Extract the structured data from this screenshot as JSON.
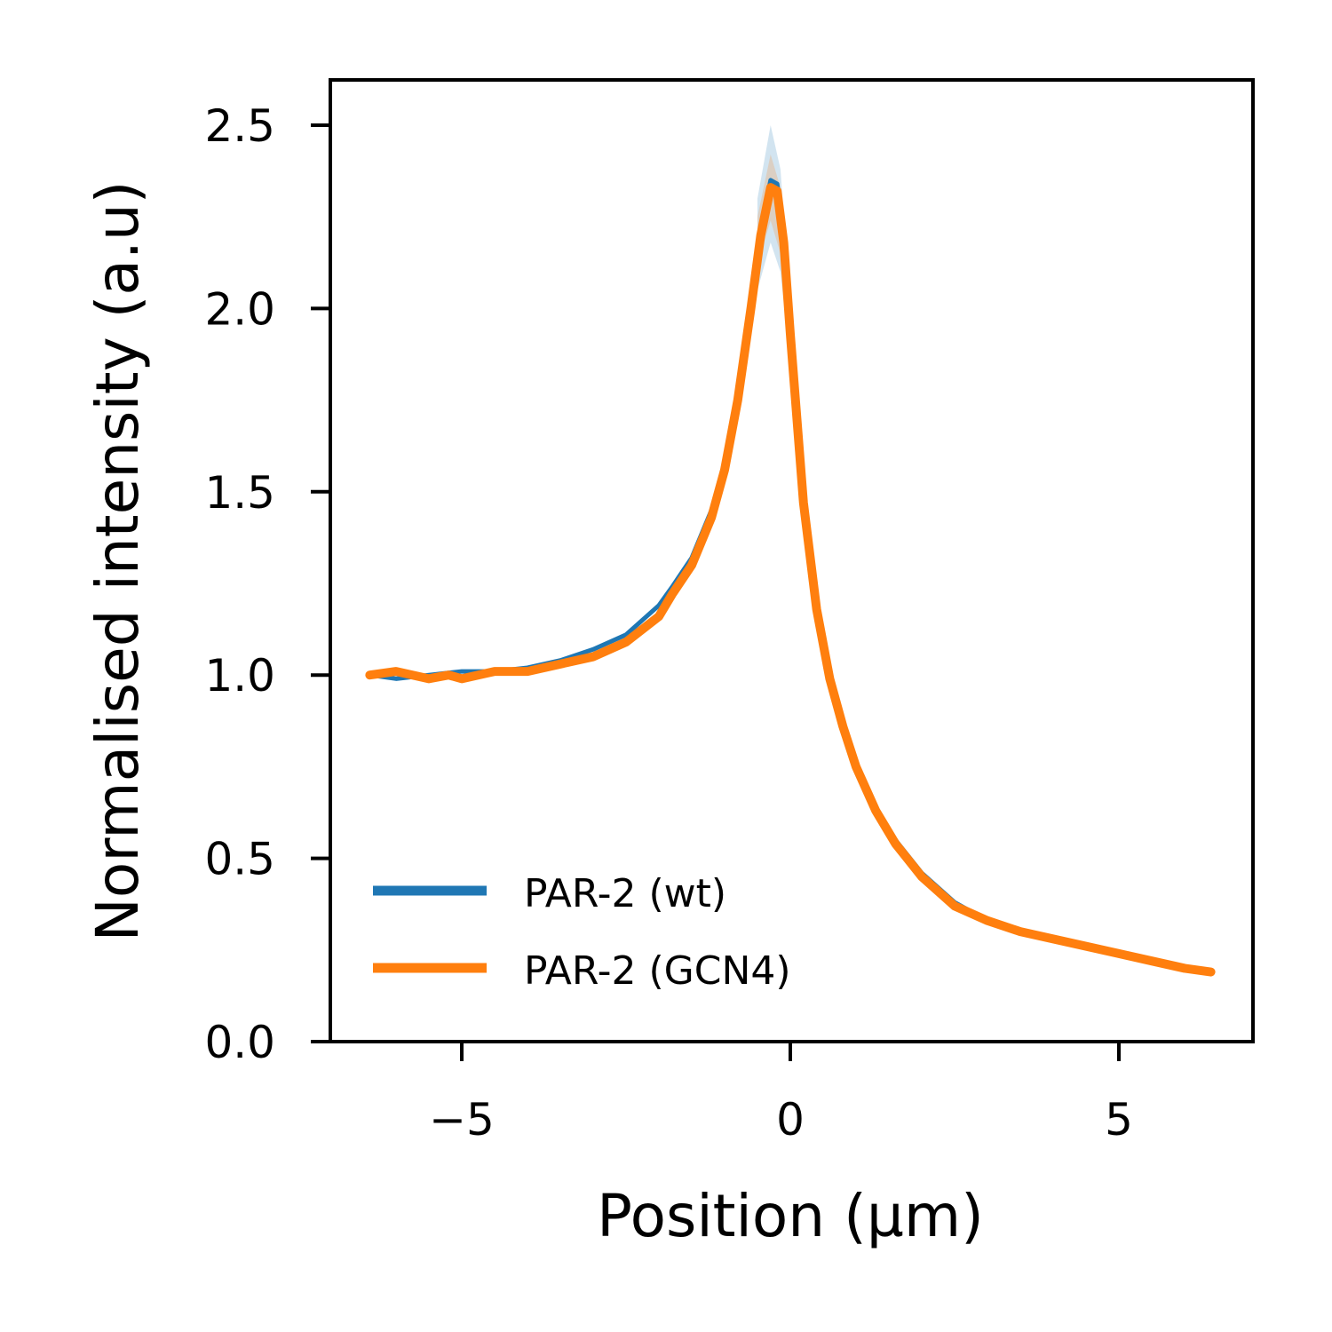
{
  "chart_data": {
    "type": "line",
    "title": "",
    "xlabel": "Position (µm)",
    "ylabel": "Normalised intensity (a.u)",
    "xlim": [
      -7,
      7
    ],
    "ylim": [
      0,
      2.62
    ],
    "xticks": [
      -5,
      0,
      5
    ],
    "xtick_labels": [
      "−5",
      "0",
      "5"
    ],
    "yticks": [
      0,
      0.5,
      1,
      1.5,
      2,
      2.5
    ],
    "ytick_labels": [
      "0.0",
      "0.5",
      "1.0",
      "1.5",
      "2.0",
      "2.5"
    ],
    "grid": false,
    "legend_position": "lower-left",
    "series": [
      {
        "name": "PAR-2 (wt)",
        "color": "#1f77b4",
        "band_upper": [
          [
            -0.5,
            2.3
          ],
          [
            -0.3,
            2.5
          ],
          [
            -0.15,
            2.38
          ],
          [
            0.0,
            2.0
          ]
        ],
        "band_lower": [
          [
            -0.5,
            2.05
          ],
          [
            -0.3,
            2.18
          ],
          [
            -0.15,
            2.1
          ],
          [
            0.0,
            1.85
          ]
        ],
        "x": [
          -6.4,
          -6.0,
          -5.5,
          -5.0,
          -4.5,
          -4.0,
          -3.5,
          -3.0,
          -2.5,
          -2.0,
          -1.8,
          -1.5,
          -1.2,
          -1.0,
          -0.8,
          -0.6,
          -0.45,
          -0.3,
          -0.2,
          -0.1,
          0.0,
          0.2,
          0.4,
          0.6,
          0.8,
          1.0,
          1.3,
          1.6,
          2.0,
          2.5,
          3.0,
          3.5,
          4.0,
          4.5,
          5.0,
          5.5,
          6.0,
          6.4
        ],
        "y": [
          1.0,
          0.99,
          1.0,
          1.01,
          1.01,
          1.02,
          1.04,
          1.07,
          1.11,
          1.19,
          1.24,
          1.32,
          1.45,
          1.58,
          1.77,
          2.03,
          2.22,
          2.35,
          2.34,
          2.2,
          1.95,
          1.49,
          1.2,
          1.01,
          0.87,
          0.76,
          0.64,
          0.55,
          0.46,
          0.38,
          0.33,
          0.3,
          0.28,
          0.26,
          0.24,
          0.22,
          0.2,
          0.19
        ]
      },
      {
        "name": "PAR-2 (GCN4)",
        "color": "#ff7f0e",
        "band_upper": [
          [
            -0.5,
            2.25
          ],
          [
            -0.3,
            2.42
          ],
          [
            -0.15,
            2.33
          ],
          [
            0.0,
            1.98
          ]
        ],
        "band_lower": [
          [
            -0.5,
            2.12
          ],
          [
            -0.3,
            2.24
          ],
          [
            -0.15,
            2.15
          ],
          [
            0.0,
            1.88
          ]
        ],
        "x": [
          -6.4,
          -6.0,
          -5.5,
          -5.2,
          -5.0,
          -4.5,
          -4.0,
          -3.5,
          -3.0,
          -2.5,
          -2.0,
          -1.8,
          -1.5,
          -1.2,
          -1.0,
          -0.8,
          -0.6,
          -0.45,
          -0.3,
          -0.2,
          -0.1,
          0.0,
          0.2,
          0.4,
          0.6,
          0.8,
          1.0,
          1.3,
          1.6,
          2.0,
          2.5,
          3.0,
          3.5,
          4.0,
          4.5,
          5.0,
          5.5,
          6.0,
          6.4
        ],
        "y": [
          1.0,
          1.01,
          0.99,
          1.0,
          0.99,
          1.01,
          1.01,
          1.03,
          1.05,
          1.09,
          1.16,
          1.22,
          1.3,
          1.43,
          1.56,
          1.75,
          2.0,
          2.2,
          2.33,
          2.32,
          2.18,
          1.93,
          1.47,
          1.18,
          0.99,
          0.86,
          0.75,
          0.63,
          0.54,
          0.45,
          0.37,
          0.33,
          0.3,
          0.28,
          0.26,
          0.24,
          0.22,
          0.2,
          0.19
        ]
      }
    ]
  }
}
